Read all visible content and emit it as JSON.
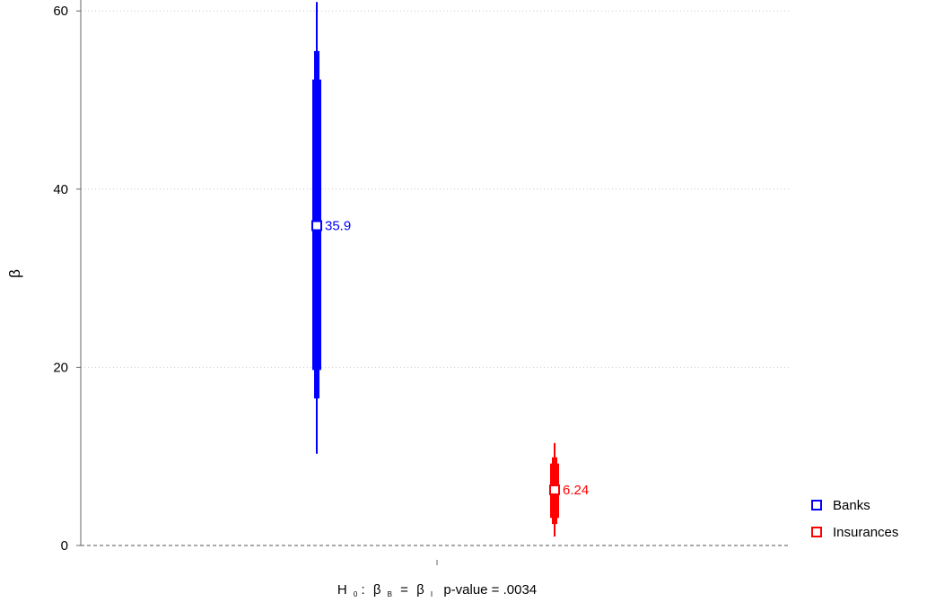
{
  "chart_data": {
    "type": "interval",
    "ylabel": "β",
    "ylim": [
      0,
      60
    ],
    "yticks": [
      0,
      20,
      40,
      60
    ],
    "grid": "horizontal dotted",
    "reference_line": 0,
    "xlabel": {
      "h": "H",
      "h_sub": "0",
      "colon": ":",
      "b1": "β",
      "b1_sub": "B",
      "eq": "=",
      "b2": "β",
      "b2_sub": "I",
      "pvalue": "p-value = .0034"
    },
    "legend_position": "bottom-right",
    "series": [
      {
        "name": "Banks",
        "color": "#0000ff",
        "estimate": 35.9,
        "label": "35.9",
        "ci_outer": [
          10.3,
          61
        ],
        "ci_mid": [
          16.5,
          55.5
        ],
        "ci_inner": [
          19.7,
          52.3
        ]
      },
      {
        "name": "Insurances",
        "color": "#ff0000",
        "estimate": 6.24,
        "label": "6.24",
        "ci_outer": [
          1.0,
          11.5
        ],
        "ci_mid": [
          2.4,
          9.9
        ],
        "ci_inner": [
          3.1,
          9.2
        ]
      }
    ]
  }
}
